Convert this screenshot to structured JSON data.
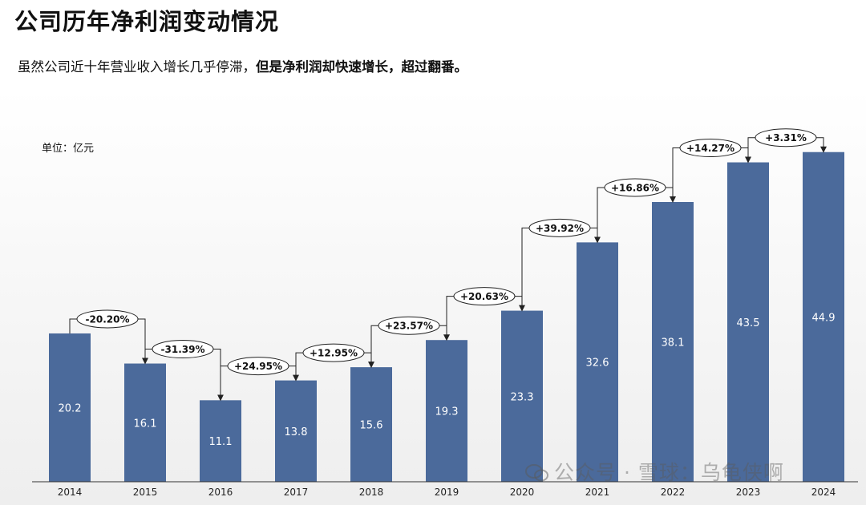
{
  "title": "公司历年净利润变动情况",
  "subtitle": {
    "normal": "虽然公司近十年营业收入增长几乎停滞，",
    "bold": "但是净利润却快速增长，超过翻番。"
  },
  "unit_label": "单位：亿元",
  "watermark": {
    "text": "公众号 · 雪球：乌龟侠啊",
    "icon": "wechat-icon"
  },
  "colors": {
    "bar": "#4b6a9b",
    "bar_label": "#ffffff",
    "axis": "#333333",
    "bubble_border": "#222222",
    "bubble_fill": "#ffffff"
  },
  "chart_data": {
    "type": "bar",
    "title": "公司历年净利润变动情况",
    "ylabel": "单位：亿元",
    "xlabel": "",
    "categories": [
      "2014",
      "2015",
      "2016",
      "2017",
      "2018",
      "2019",
      "2020",
      "2021",
      "2022",
      "2023",
      "2024"
    ],
    "values": [
      20.2,
      16.1,
      11.1,
      13.8,
      15.6,
      19.3,
      23.3,
      32.6,
      38.1,
      43.5,
      44.9
    ],
    "value_labels": [
      "20.2",
      "16.1",
      "11.1",
      "13.8",
      "15.6",
      "19.3",
      "23.3",
      "32.6",
      "38.1",
      "43.5",
      "44.9"
    ],
    "changes": [
      "-20.20%",
      "-31.39%",
      "+24.95%",
      "+12.95%",
      "+23.57%",
      "+20.63%",
      "+39.92%",
      "+16.86%",
      "+14.27%",
      "+3.31%"
    ],
    "ylim": [
      0,
      50
    ],
    "grid": false
  }
}
